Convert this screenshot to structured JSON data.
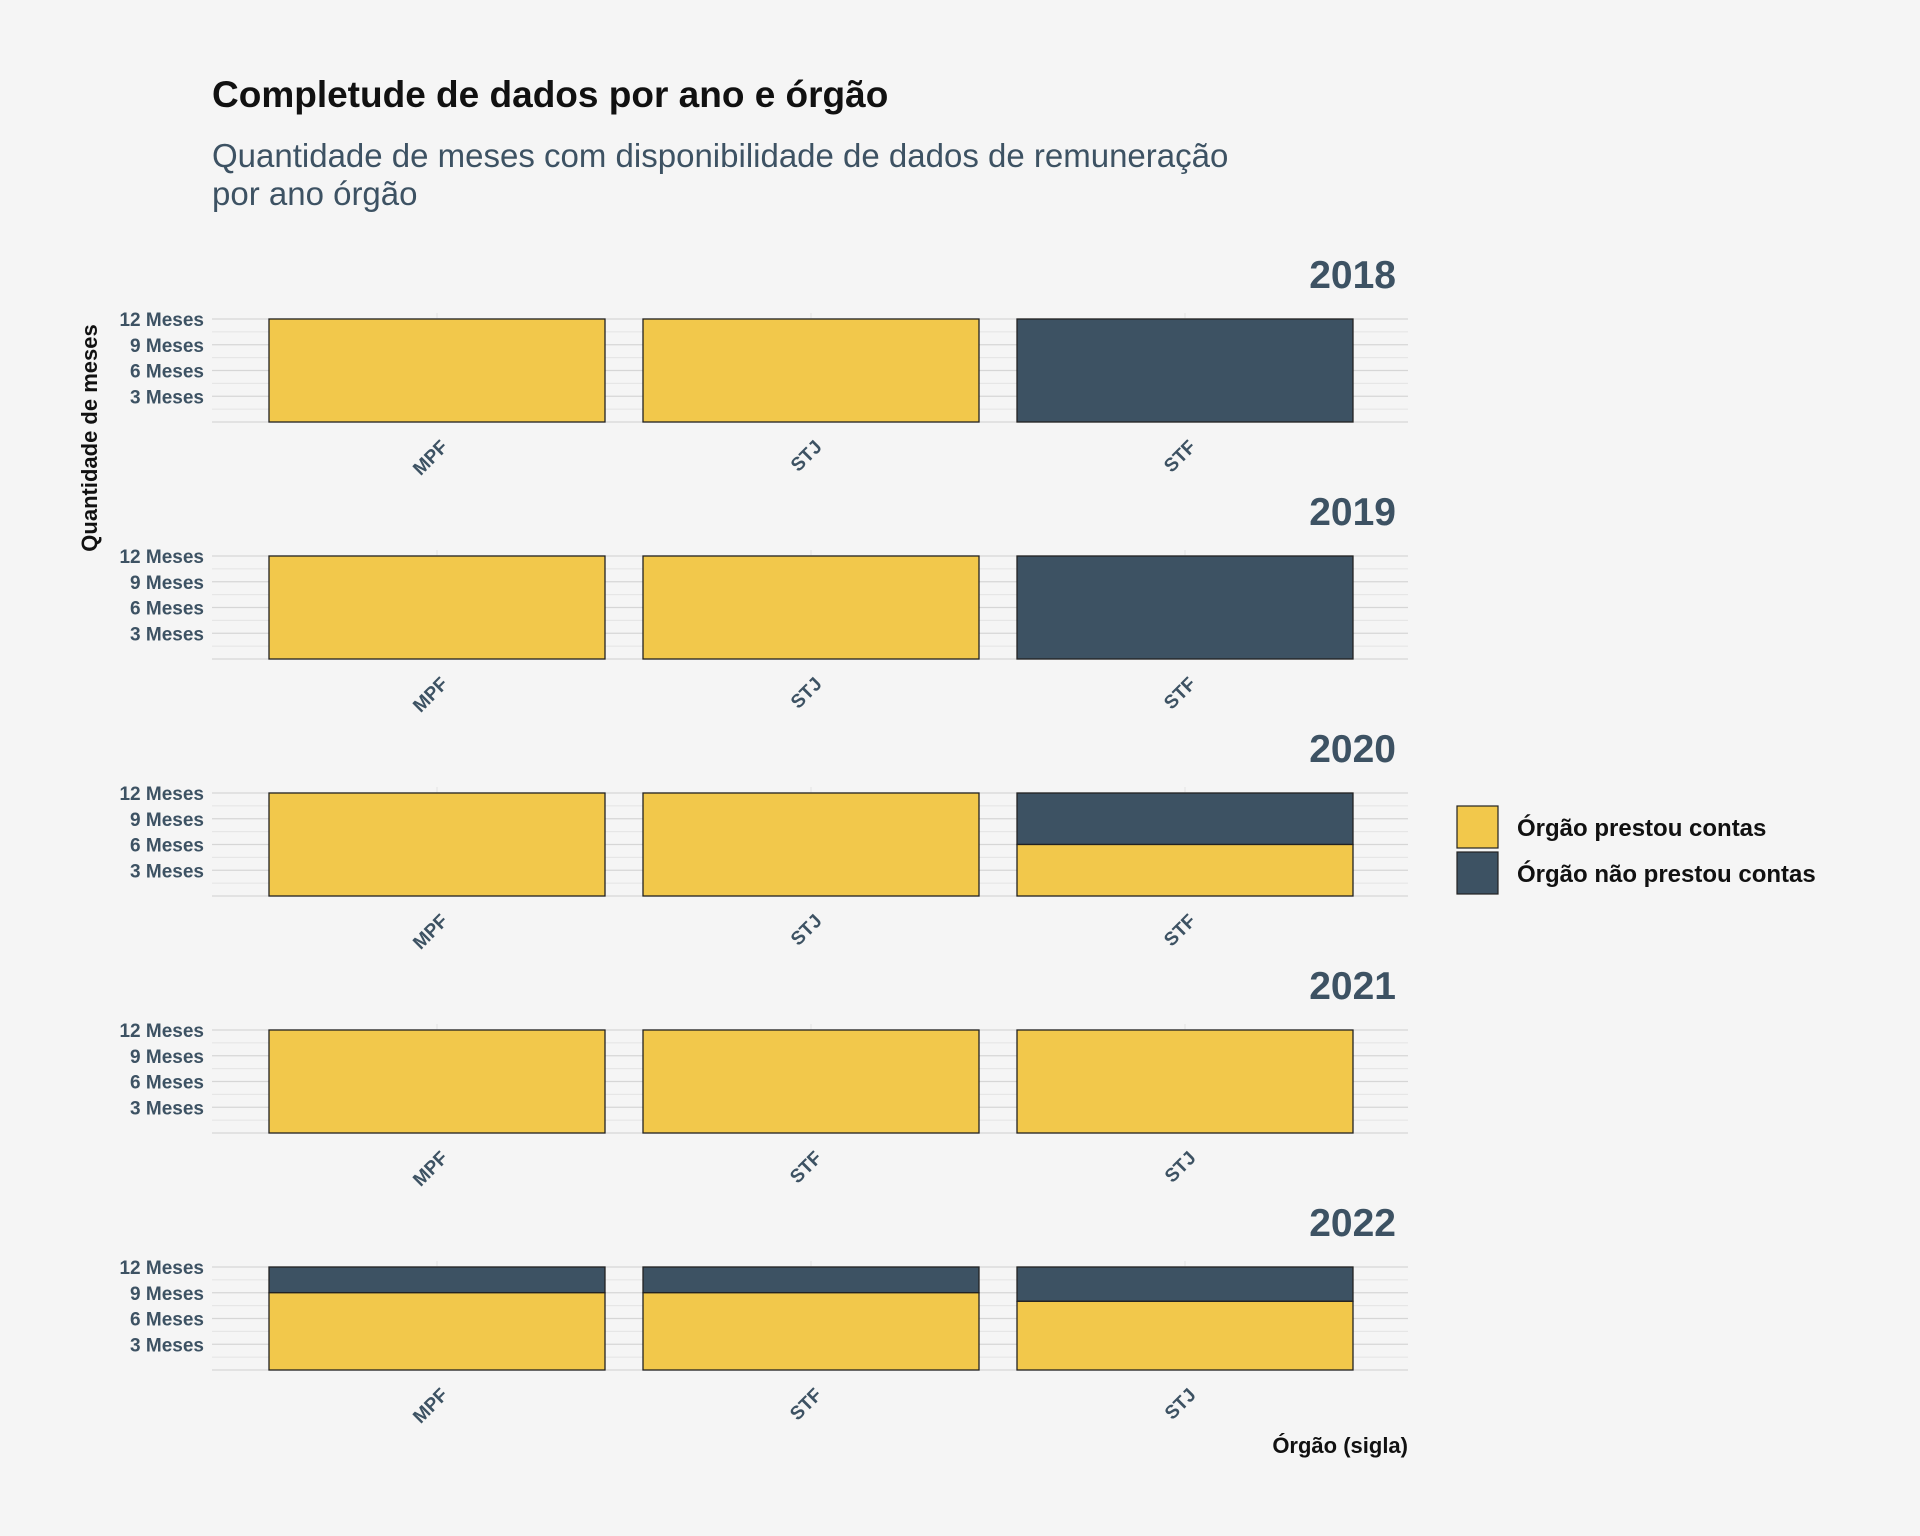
{
  "chart_data": {
    "type": "bar",
    "title": "Completude de dados por ano e órgão",
    "subtitle_lines": [
      "Quantidade de meses com disponibilidade de dados de remuneração",
      "por ano órgão"
    ],
    "xlabel": "Órgão (sigla)",
    "ylabel": "Quantidade de meses",
    "ylim": [
      0,
      12
    ],
    "y_ticks": [
      {
        "value": 3,
        "label": "3 Meses"
      },
      {
        "value": 6,
        "label": "6 Meses"
      },
      {
        "value": 9,
        "label": "9 Meses"
      },
      {
        "value": 12,
        "label": "12 Meses"
      }
    ],
    "stacked": true,
    "legend_position": "right",
    "legend": [
      {
        "key": "prestou",
        "label": "Órgão prestou contas",
        "color": "#f2c84b"
      },
      {
        "key": "nao_prestou",
        "label": "Órgão não prestou contas",
        "color": "#3d5263"
      }
    ],
    "panels": [
      {
        "year": "2018",
        "categories": [
          "MPF",
          "STJ",
          "STF"
        ],
        "prestou": [
          12,
          12,
          0
        ],
        "nao_prestou": [
          0,
          0,
          12
        ]
      },
      {
        "year": "2019",
        "categories": [
          "MPF",
          "STJ",
          "STF"
        ],
        "prestou": [
          12,
          12,
          0
        ],
        "nao_prestou": [
          0,
          0,
          12
        ]
      },
      {
        "year": "2020",
        "categories": [
          "MPF",
          "STJ",
          "STF"
        ],
        "prestou": [
          12,
          12,
          6
        ],
        "nao_prestou": [
          0,
          0,
          6
        ]
      },
      {
        "year": "2021",
        "categories": [
          "MPF",
          "STF",
          "STJ"
        ],
        "prestou": [
          12,
          12,
          12
        ],
        "nao_prestou": [
          0,
          0,
          0
        ]
      },
      {
        "year": "2022",
        "categories": [
          "MPF",
          "STF",
          "STJ"
        ],
        "prestou": [
          9,
          9,
          8
        ],
        "nao_prestou": [
          3,
          3,
          4
        ]
      }
    ]
  }
}
